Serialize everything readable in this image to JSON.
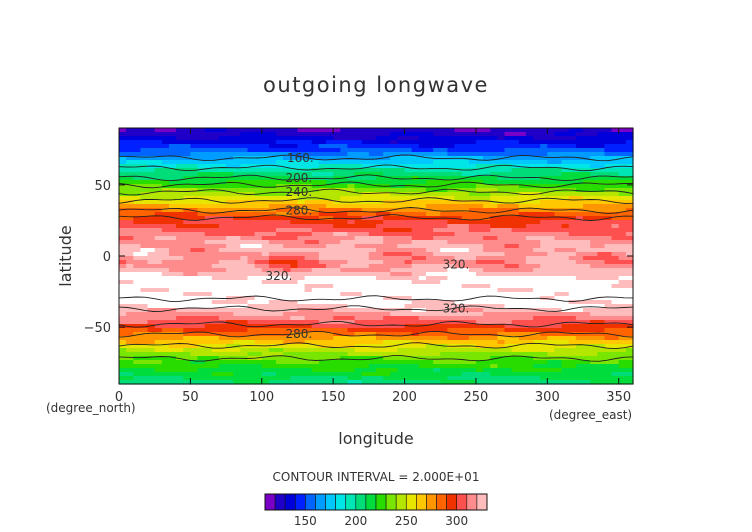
{
  "chart_data": {
    "type": "heatmap",
    "title": "outgoing longwave",
    "xlabel": "longitude",
    "ylabel": "latitude",
    "x_unit_label": "(degree_east)",
    "y_unit_label": "(degree_north)",
    "xlim": [
      0,
      360
    ],
    "ylim": [
      -90,
      90
    ],
    "x_ticks": [
      0,
      50,
      100,
      150,
      200,
      250,
      300,
      350
    ],
    "y_ticks": [
      -50,
      0,
      50
    ],
    "contour_interval_text": "CONTOUR INTERVAL = 2.000E+01",
    "contour_labels": [
      {
        "text": "160.",
        "lon": 127,
        "lat": 69
      },
      {
        "text": "200.",
        "lon": 126,
        "lat": 55
      },
      {
        "text": "240.",
        "lon": 126,
        "lat": 45
      },
      {
        "text": "280.",
        "lon": 126,
        "lat": 32
      },
      {
        "text": "320.",
        "lon": 112,
        "lat": -14
      },
      {
        "text": "320.",
        "lon": 236,
        "lat": -6
      },
      {
        "text": "320.",
        "lon": 236,
        "lat": -37
      },
      {
        "text": "280.",
        "lon": 126,
        "lat": -55
      }
    ],
    "colorbar": {
      "min": 110,
      "max": 330,
      "step": 10,
      "tick_values": [
        150,
        200,
        250,
        300
      ],
      "tick_labels": [
        "150",
        "200",
        "250",
        "300"
      ]
    },
    "zonal_profile": {
      "lat": [
        -90,
        -85,
        -80,
        -75,
        -70,
        -65,
        -60,
        -55,
        -50,
        -45,
        -40,
        -35,
        -30,
        -25,
        -20,
        -15,
        -10,
        -5,
        0,
        5,
        10,
        15,
        20,
        25,
        30,
        35,
        40,
        45,
        50,
        55,
        60,
        65,
        70,
        75,
        80,
        85,
        90
      ],
      "olr": [
        205,
        212,
        218,
        226,
        236,
        250,
        266,
        282,
        297,
        310,
        320,
        330,
        335,
        335,
        335,
        333,
        322,
        315,
        318,
        322,
        318,
        312,
        304,
        300,
        285,
        270,
        255,
        240,
        225,
        212,
        200,
        180,
        165,
        150,
        138,
        128,
        122
      ]
    }
  }
}
